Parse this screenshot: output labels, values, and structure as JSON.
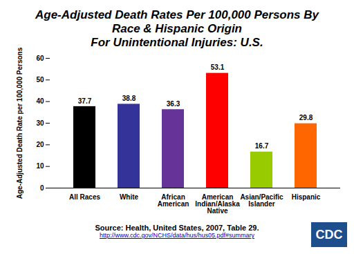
{
  "chart_data": {
    "type": "bar",
    "title": [
      "Age-Adjusted Death Rates Per 100,000 Persons By",
      "Race & Hispanic Origin",
      "For Unintentional Injuries: U.S."
    ],
    "y_label": "Age-Adjusted Death Rate per 100,000 Persons",
    "categories": [
      "All Races",
      "White",
      "African American",
      "American Indian/Alaska Native",
      "Asian/Pacific Islander",
      "Hispanic"
    ],
    "values": [
      37.7,
      38.8,
      36.3,
      53.1,
      16.7,
      29.8
    ],
    "colors": [
      "#000000",
      "#333399",
      "#663399",
      "#ff0000",
      "#99cc00",
      "#ff6600"
    ],
    "ylim": [
      0,
      60
    ],
    "yticks": [
      0,
      10,
      20,
      30,
      40,
      50,
      60
    ],
    "grid": false,
    "data_labels": true,
    "source": "Source: Health, United States, 2007, Table 29.",
    "source_url": "http://www.cdc.gov/NCHS/data/hus/hus05.pdf#summary",
    "logo": "CDC"
  }
}
